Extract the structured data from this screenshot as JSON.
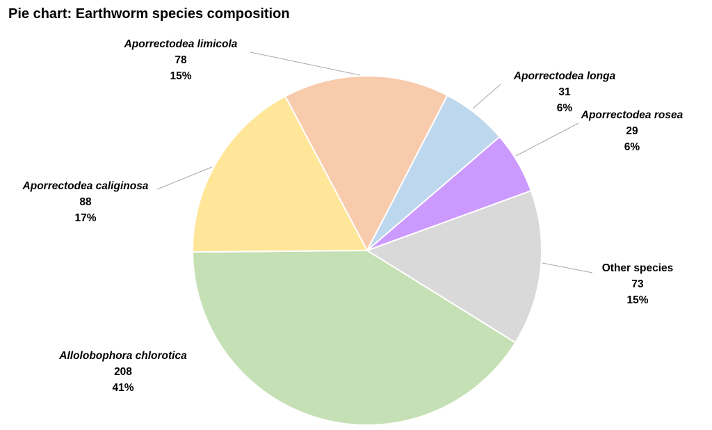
{
  "chart_data": {
    "type": "pie",
    "title": "Pie chart: Earthworm species composition",
    "slices": [
      {
        "name": "Aporrectodea limicola",
        "value": 78,
        "percent": "15%",
        "color": "#F8CBAD",
        "italic": true,
        "label_side": "left"
      },
      {
        "name": "Aporrectodea longa",
        "value": 31,
        "percent": "6%",
        "color": "#BDD7EE",
        "italic": true,
        "label_side": "right"
      },
      {
        "name": "Aporrectodea rosea",
        "value": 29,
        "percent": "6%",
        "color": "#CC99FF",
        "italic": true,
        "label_side": "right"
      },
      {
        "name": "Other species",
        "value": 73,
        "percent": "15%",
        "color": "#D9D9D9",
        "italic": false,
        "label_side": "right"
      },
      {
        "name": "Allolobophora chlorotica",
        "value": 208,
        "percent": "41%",
        "color": "#C5E0B4",
        "italic": true,
        "label_side": "left"
      },
      {
        "name": "Aporrectodea caliginosa",
        "value": 88,
        "percent": "17%",
        "color": "#FFE699",
        "italic": true,
        "label_side": "left"
      }
    ],
    "legend": "none"
  },
  "colors": {
    "slice_border": "#ffffff",
    "leader_line": "#A6A6A6",
    "label_text": "#000000"
  }
}
